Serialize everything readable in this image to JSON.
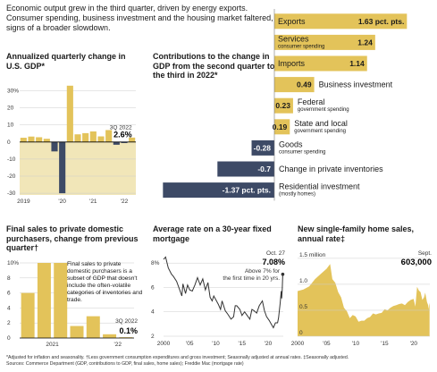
{
  "intro": "Economic output grew in the third quarter, driven by energy exports. Consumer spending, business investment and the housing market faltered, signs of a broader slowdown.",
  "colors": {
    "gold": "#e3c35a",
    "navy": "#3d4a66",
    "line": "#333333",
    "highlight": "#f1e6b8"
  },
  "footnotes": {
    "line1": "*Adjusted for inflation and seasonality.  †Less government consumption expenditures and gross investment; Seasonally adjusted at annual rates.  ‡Seasonally adjusted.",
    "line2": "Sources: Commerce Department (GDP, contributions to GDP, final sales, home sales); Freddie Mac (mortgage rate)"
  },
  "chart_data": [
    {
      "id": "gdp",
      "type": "bar",
      "title": "Annualized quarterly change in U.S. GDP*",
      "ylim": [
        -31,
        35
      ],
      "yticks": [
        {
          "v": 30,
          "t": "30%"
        },
        {
          "v": 20,
          "t": "20"
        },
        {
          "v": 10,
          "t": "10"
        },
        {
          "v": 0,
          "t": "0"
        },
        {
          "v": -10,
          "t": "-10"
        },
        {
          "v": -20,
          "t": "-20"
        },
        {
          "v": -30,
          "t": "-30"
        }
      ],
      "xticks": [
        {
          "i": 0,
          "t": "2019"
        },
        {
          "i": 5,
          "t": "'20"
        },
        {
          "i": 9,
          "t": "'21"
        },
        {
          "i": 13,
          "t": "'22"
        }
      ],
      "values": [
        2.5,
        3.2,
        2.8,
        1.9,
        -5.5,
        -30,
        33,
        4.5,
        5.2,
        6.2,
        3.3,
        7.0,
        -1.6,
        -0.6,
        2.6
      ],
      "annotation": {
        "label": "3Q 2022",
        "value": "2.6%"
      }
    },
    {
      "id": "contrib",
      "type": "bar",
      "title": "Contributions to the change in GDP from the second quarter to the third in 2022*",
      "xlim": [
        -1.4,
        1.7
      ],
      "items": [
        {
          "name": "Exports",
          "value": 1.63,
          "label": "1.63 pct. pts.",
          "sub": ""
        },
        {
          "name": "Services",
          "value": 1.24,
          "label": "1.24",
          "sub": "consumer spending"
        },
        {
          "name": "Imports",
          "value": 1.14,
          "label": "1.14",
          "sub": ""
        },
        {
          "name": "Business investment",
          "value": 0.49,
          "label": "0.49",
          "sub": ""
        },
        {
          "name": "Federal",
          "value": 0.23,
          "label": "0.23",
          "sub": "government spending"
        },
        {
          "name": "State and local",
          "value": 0.19,
          "label": "0.19",
          "sub": "government spending"
        },
        {
          "name": "Goods",
          "value": -0.28,
          "label": "-0.28",
          "sub": "consumer spending"
        },
        {
          "name": "Change in private inventories",
          "value": -0.7,
          "label": "-0.7",
          "sub": ""
        },
        {
          "name": "Residential investment",
          "value": -1.37,
          "label": "-1.37 pct. pts.",
          "sub": "(mostly homes)"
        }
      ]
    },
    {
      "id": "finalsales",
      "type": "bar",
      "title": "Final sales to private domestic purchasers, change from previous quarter†",
      "ylim": [
        0,
        10
      ],
      "yticks": [
        {
          "v": 10,
          "t": "10%"
        },
        {
          "v": 8,
          "t": "8"
        },
        {
          "v": 6,
          "t": "6"
        },
        {
          "v": 4,
          "t": "4"
        },
        {
          "v": 2,
          "t": "2"
        },
        {
          "v": 0,
          "t": "0"
        }
      ],
      "xticks": [
        {
          "i": 1.5,
          "t": "2021"
        },
        {
          "i": 5.5,
          "t": "'22"
        }
      ],
      "values": [
        6.0,
        10.2,
        10.0,
        1.6,
        2.9,
        0.5,
        0.1
      ],
      "note": "Final sales to private domestic purchasers is a subset of GDP that doesn't include the often-volatile categories of inventories and trade.",
      "annotation": {
        "label": "3Q 2022",
        "value": "0.1%"
      }
    },
    {
      "id": "mortgage",
      "type": "line",
      "title": "Average rate on a 30-year fixed mortgage",
      "xlim": [
        2000,
        2022.9
      ],
      "ylim": [
        2,
        8.6
      ],
      "yticks": [
        {
          "v": 8,
          "t": "8%"
        },
        {
          "v": 6,
          "t": "6"
        },
        {
          "v": 4,
          "t": "4"
        },
        {
          "v": 2,
          "t": "2"
        }
      ],
      "xticks": [
        {
          "v": 2000,
          "t": "2000"
        },
        {
          "v": 2005,
          "t": "'05"
        },
        {
          "v": 2010,
          "t": "'10"
        },
        {
          "v": 2015,
          "t": "'15"
        },
        {
          "v": 2020,
          "t": "'20"
        }
      ],
      "points": [
        [
          2000,
          8.3
        ],
        [
          2000.4,
          8.5
        ],
        [
          2000.9,
          7.6
        ],
        [
          2001.5,
          7.1
        ],
        [
          2001.9,
          6.9
        ],
        [
          2002.5,
          6.5
        ],
        [
          2003.0,
          5.9
        ],
        [
          2003.5,
          5.3
        ],
        [
          2003.7,
          6.3
        ],
        [
          2004.2,
          5.5
        ],
        [
          2004.6,
          6.2
        ],
        [
          2005.0,
          5.8
        ],
        [
          2005.5,
          5.7
        ],
        [
          2006.0,
          6.2
        ],
        [
          2006.5,
          6.8
        ],
        [
          2007.0,
          6.2
        ],
        [
          2007.5,
          6.7
        ],
        [
          2008.0,
          5.8
        ],
        [
          2008.5,
          6.4
        ],
        [
          2008.9,
          5.2
        ],
        [
          2009.3,
          4.9
        ],
        [
          2009.6,
          5.3
        ],
        [
          2010.0,
          5.0
        ],
        [
          2010.5,
          4.6
        ],
        [
          2010.9,
          4.2
        ],
        [
          2011.2,
          4.9
        ],
        [
          2011.8,
          4.1
        ],
        [
          2012.3,
          3.8
        ],
        [
          2012.9,
          3.4
        ],
        [
          2013.4,
          3.6
        ],
        [
          2013.7,
          4.5
        ],
        [
          2014.0,
          4.5
        ],
        [
          2014.6,
          4.2
        ],
        [
          2015.0,
          3.7
        ],
        [
          2015.5,
          4.0
        ],
        [
          2016.0,
          3.7
        ],
        [
          2016.5,
          3.4
        ],
        [
          2016.9,
          4.2
        ],
        [
          2017.3,
          4.1
        ],
        [
          2017.8,
          3.9
        ],
        [
          2018.3,
          4.5
        ],
        [
          2018.9,
          4.9
        ],
        [
          2019.3,
          4.1
        ],
        [
          2019.7,
          3.6
        ],
        [
          2020.2,
          3.3
        ],
        [
          2020.6,
          3.0
        ],
        [
          2021.0,
          2.7
        ],
        [
          2021.4,
          3.1
        ],
        [
          2021.8,
          3.1
        ],
        [
          2022.0,
          3.5
        ],
        [
          2022.3,
          4.7
        ],
        [
          2022.5,
          5.7
        ],
        [
          2022.6,
          5.1
        ],
        [
          2022.7,
          5.8
        ],
        [
          2022.8,
          7.08
        ]
      ],
      "annotation": {
        "label": "Oct. 27",
        "value": "7.08%",
        "note": "Above 7% for the first time in 20 yrs."
      }
    },
    {
      "id": "homesales",
      "type": "area",
      "title": "New single-family home sales, annual rate‡",
      "xlim": [
        2000,
        2022.8
      ],
      "ylim": [
        0,
        1.55
      ],
      "yticks": [
        {
          "v": 1.5,
          "t": "1.5 million"
        },
        {
          "v": 1.0,
          "t": "1.0"
        },
        {
          "v": 0.5,
          "t": "0.5"
        },
        {
          "v": 0,
          "t": "0"
        }
      ],
      "xticks": [
        {
          "v": 2000,
          "t": "2000"
        },
        {
          "v": 2005,
          "t": "'05"
        },
        {
          "v": 2010,
          "t": "'10"
        },
        {
          "v": 2015,
          "t": "'15"
        },
        {
          "v": 2020,
          "t": "'20"
        }
      ],
      "points": [
        [
          2000,
          0.87
        ],
        [
          2001,
          0.9
        ],
        [
          2002,
          0.96
        ],
        [
          2003,
          1.1
        ],
        [
          2004,
          1.2
        ],
        [
          2005,
          1.3
        ],
        [
          2005.6,
          1.39
        ],
        [
          2006,
          1.1
        ],
        [
          2006.5,
          1.03
        ],
        [
          2007,
          0.85
        ],
        [
          2007.5,
          0.75
        ],
        [
          2008,
          0.55
        ],
        [
          2008.5,
          0.48
        ],
        [
          2009,
          0.35
        ],
        [
          2009.5,
          0.41
        ],
        [
          2010,
          0.38
        ],
        [
          2010.5,
          0.28
        ],
        [
          2011,
          0.3
        ],
        [
          2011.5,
          0.3
        ],
        [
          2012,
          0.35
        ],
        [
          2012.5,
          0.37
        ],
        [
          2013,
          0.44
        ],
        [
          2013.5,
          0.42
        ],
        [
          2014,
          0.44
        ],
        [
          2014.5,
          0.45
        ],
        [
          2015,
          0.52
        ],
        [
          2015.5,
          0.5
        ],
        [
          2016,
          0.55
        ],
        [
          2016.5,
          0.58
        ],
        [
          2017,
          0.6
        ],
        [
          2017.5,
          0.62
        ],
        [
          2018,
          0.63
        ],
        [
          2018.5,
          0.6
        ],
        [
          2019,
          0.66
        ],
        [
          2019.5,
          0.7
        ],
        [
          2020,
          0.72
        ],
        [
          2020.3,
          0.57
        ],
        [
          2020.6,
          0.95
        ],
        [
          2020.9,
          0.88
        ],
        [
          2021.2,
          0.85
        ],
        [
          2021.5,
          0.7
        ],
        [
          2021.8,
          0.75
        ],
        [
          2022.0,
          0.84
        ],
        [
          2022.3,
          0.66
        ],
        [
          2022.5,
          0.6
        ],
        [
          2022.6,
          0.52
        ],
        [
          2022.7,
          0.64
        ],
        [
          2022.75,
          0.603
        ]
      ],
      "annotation": {
        "label": "Sept.",
        "value": "603,000"
      }
    }
  ]
}
